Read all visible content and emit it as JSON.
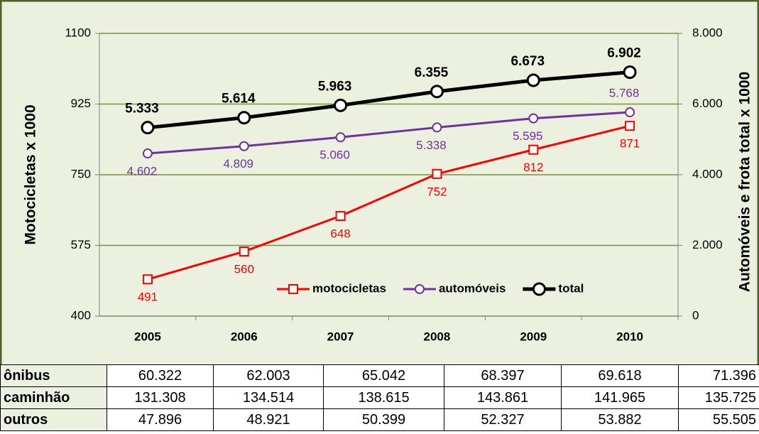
{
  "chart_data": {
    "type": "line",
    "categories": [
      "2005",
      "2006",
      "2007",
      "2008",
      "2009",
      "2010"
    ],
    "ylabel": "Motocicletas  x  1000",
    "y2label": "Automóveis e frota total  x  1000",
    "ylim": [
      400,
      1100
    ],
    "yticks": [
      400,
      575,
      750,
      925,
      1100
    ],
    "y2lim": [
      0,
      8000
    ],
    "y2ticks": [
      0,
      {
        "value": 2000,
        "label": "2.000"
      },
      {
        "value": 4000,
        "label": "4.000"
      },
      {
        "value": 6000,
        "label": "6.000"
      },
      {
        "value": 8000,
        "label": "8.000"
      }
    ],
    "grid": true,
    "legend": "lower right",
    "series": [
      {
        "name": "motocicletas",
        "color": "#ff0000",
        "marker": "square",
        "values": [
          491,
          560,
          648,
          752,
          812,
          871
        ]
      },
      {
        "name": "automóveis",
        "color": "#7030a0",
        "marker": "circle",
        "axis": "y2",
        "values": [
          4602,
          4809,
          5060,
          5338,
          5595,
          5768
        ],
        "value_labels": [
          "4.602",
          "4.809",
          "5.060",
          "5.338",
          "5.595",
          "5.768"
        ]
      },
      {
        "name": "total",
        "color": "#000000",
        "marker": "circle",
        "axis": "y2",
        "values": [
          5333,
          5614,
          5963,
          6355,
          6673,
          6902
        ],
        "value_labels": [
          "5.333",
          "5.614",
          "5.963",
          "6.355",
          "6.673",
          "6.902"
        ]
      }
    ]
  },
  "table": {
    "rows": [
      [
        "ônibus",
        "60.322",
        "62.003",
        "65.042",
        "68.397",
        "69.618",
        "71.396"
      ],
      [
        "caminhão",
        "131.308",
        "134.514",
        "138.615",
        "143.861",
        "141.965",
        "135.725"
      ],
      [
        "outros",
        "47.896",
        "48.921",
        "50.399",
        "52.327",
        "53.882",
        "55.505"
      ]
    ]
  }
}
